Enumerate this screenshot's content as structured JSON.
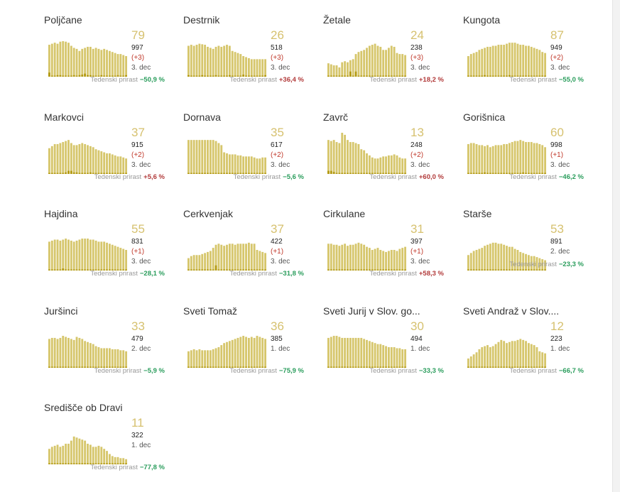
{
  "colors": {
    "bar": "#d6c66c",
    "bar_new": "#b39a12",
    "active": "#d6c16f",
    "growth_up": "#b23b3b",
    "growth_down": "#2a9d5c"
  },
  "growth_label": "Tedenski prirast",
  "chart_data": [
    {
      "type": "bar",
      "title": "Poljčane",
      "active": "79",
      "total": "997",
      "delta": "(+3)",
      "date": "3. dec",
      "growth": "−50,9 %",
      "dir": "down",
      "values": [
        62,
        64,
        66,
        64,
        68,
        69,
        68,
        66,
        60,
        56,
        54,
        50,
        54,
        56,
        58,
        58,
        54,
        56,
        54,
        52,
        54,
        52,
        50,
        48,
        46,
        44,
        44,
        42,
        40
      ],
      "new": [
        8,
        2,
        2,
        3,
        3,
        2,
        2,
        2,
        2,
        3,
        2,
        3,
        4,
        6,
        3,
        3,
        2,
        2,
        2,
        3,
        2,
        2,
        2,
        2,
        2,
        3,
        2,
        2,
        3
      ]
    },
    {
      "type": "bar",
      "title": "Destrnik",
      "active": "26",
      "total": "518",
      "delta": "(+3)",
      "date": "3. dec",
      "growth": "+36,4 %",
      "dir": "up",
      "values": [
        60,
        62,
        60,
        62,
        64,
        63,
        62,
        58,
        56,
        54,
        58,
        60,
        58,
        60,
        62,
        60,
        50,
        48,
        46,
        44,
        40,
        38,
        36,
        34,
        34,
        34,
        34,
        34,
        34
      ],
      "new": [
        3,
        2,
        2,
        2,
        2,
        3,
        2,
        2,
        2,
        2,
        3,
        2,
        2,
        2,
        2,
        3,
        2,
        2,
        2,
        2,
        4,
        2,
        2,
        2,
        2,
        2,
        2,
        2,
        3
      ]
    },
    {
      "type": "bar",
      "title": "Žetale",
      "active": "24",
      "total": "238",
      "delta": "(+3)",
      "date": "3. dec",
      "growth": "+18,2 %",
      "dir": "up",
      "values": [
        26,
        24,
        22,
        22,
        18,
        28,
        30,
        28,
        32,
        34,
        44,
        48,
        50,
        52,
        56,
        60,
        62,
        64,
        60,
        58,
        52,
        52,
        56,
        60,
        58,
        46,
        44,
        44,
        42
      ],
      "new": [
        2,
        2,
        2,
        2,
        2,
        2,
        2,
        2,
        10,
        2,
        10,
        2,
        2,
        2,
        2,
        2,
        2,
        2,
        2,
        2,
        2,
        2,
        2,
        2,
        2,
        2,
        2,
        2,
        2
      ]
    },
    {
      "type": "bar",
      "title": "Kungota",
      "active": "87",
      "total": "949",
      "delta": "(+2)",
      "date": "3. dec",
      "growth": "−55,0 %",
      "dir": "down",
      "values": [
        40,
        44,
        46,
        48,
        52,
        54,
        56,
        58,
        58,
        60,
        60,
        62,
        62,
        62,
        64,
        66,
        66,
        66,
        64,
        62,
        62,
        60,
        60,
        58,
        56,
        54,
        52,
        48,
        46
      ],
      "new": [
        2,
        2,
        2,
        2,
        2,
        2,
        3,
        2,
        2,
        2,
        2,
        2,
        2,
        2,
        2,
        3,
        2,
        2,
        2,
        2,
        2,
        2,
        2,
        2,
        2,
        2,
        2,
        2,
        2
      ]
    },
    {
      "type": "bar",
      "title": "Markovci",
      "active": "37",
      "total": "915",
      "delta": "(+2)",
      "date": "3. dec",
      "growth": "+5,6 %",
      "dir": "up",
      "values": [
        50,
        54,
        58,
        58,
        60,
        62,
        64,
        66,
        60,
        56,
        56,
        58,
        60,
        58,
        56,
        54,
        52,
        48,
        46,
        44,
        42,
        40,
        40,
        38,
        36,
        34,
        34,
        32,
        30
      ],
      "new": [
        2,
        2,
        2,
        2,
        2,
        2,
        3,
        6,
        6,
        3,
        3,
        2,
        2,
        2,
        2,
        3,
        2,
        2,
        2,
        2,
        2,
        2,
        2,
        2,
        2,
        2,
        2,
        2,
        2
      ]
    },
    {
      "type": "bar",
      "title": "Dornava",
      "active": "35",
      "total": "617",
      "delta": "(+2)",
      "date": "3. dec",
      "growth": "−5,6 %",
      "dir": "down",
      "values": [
        66,
        66,
        66,
        66,
        66,
        66,
        66,
        66,
        66,
        66,
        64,
        60,
        56,
        42,
        40,
        38,
        38,
        38,
        36,
        36,
        34,
        34,
        34,
        34,
        32,
        30,
        30,
        32,
        32
      ],
      "new": [
        2,
        2,
        2,
        2,
        2,
        2,
        2,
        2,
        2,
        2,
        2,
        2,
        2,
        2,
        2,
        2,
        2,
        2,
        2,
        2,
        2,
        2,
        2,
        2,
        2,
        2,
        2,
        2,
        2
      ]
    },
    {
      "type": "bar",
      "title": "Zavrč",
      "active": "13",
      "total": "248",
      "delta": "(+2)",
      "date": "3. dec",
      "growth": "+60,0 %",
      "dir": "up",
      "values": [
        66,
        64,
        66,
        62,
        60,
        80,
        76,
        66,
        62,
        62,
        60,
        58,
        48,
        46,
        40,
        36,
        32,
        30,
        30,
        32,
        34,
        34,
        36,
        36,
        38,
        36,
        32,
        30,
        30
      ],
      "new": [
        6,
        6,
        4,
        2,
        2,
        2,
        2,
        2,
        2,
        2,
        2,
        2,
        2,
        2,
        2,
        2,
        2,
        2,
        2,
        2,
        2,
        2,
        2,
        2,
        2,
        2,
        2,
        2,
        2
      ]
    },
    {
      "type": "bar",
      "title": "Gorišnica",
      "active": "60",
      "total": "998",
      "delta": "(+1)",
      "date": "3. dec",
      "growth": "−46,2 %",
      "dir": "down",
      "values": [
        58,
        60,
        60,
        58,
        56,
        56,
        54,
        56,
        52,
        54,
        56,
        56,
        56,
        58,
        58,
        60,
        62,
        64,
        64,
        66,
        64,
        62,
        62,
        62,
        60,
        60,
        58,
        56,
        52
      ],
      "new": [
        2,
        2,
        2,
        2,
        2,
        2,
        3,
        2,
        2,
        2,
        2,
        2,
        2,
        2,
        2,
        2,
        2,
        2,
        2,
        2,
        3,
        2,
        2,
        2,
        2,
        2,
        2,
        2,
        2
      ]
    },
    {
      "type": "bar",
      "title": "Hajdina",
      "active": "55",
      "total": "831",
      "delta": "(+1)",
      "date": "3. dec",
      "growth": "−28,1 %",
      "dir": "down",
      "values": [
        56,
        58,
        60,
        60,
        58,
        60,
        62,
        60,
        58,
        56,
        58,
        60,
        62,
        62,
        62,
        60,
        60,
        58,
        56,
        56,
        56,
        54,
        52,
        50,
        48,
        46,
        44,
        42,
        40
      ],
      "new": [
        2,
        2,
        2,
        2,
        2,
        4,
        2,
        2,
        2,
        2,
        2,
        2,
        2,
        2,
        2,
        2,
        2,
        2,
        2,
        2,
        2,
        2,
        2,
        2,
        2,
        2,
        2,
        2,
        2
      ]
    },
    {
      "type": "bar",
      "title": "Cerkvenjak",
      "active": "37",
      "total": "422",
      "delta": "(+1)",
      "date": "3. dec",
      "growth": "−31,8 %",
      "dir": "down",
      "values": [
        24,
        28,
        30,
        30,
        30,
        32,
        34,
        36,
        38,
        44,
        50,
        52,
        50,
        48,
        50,
        52,
        52,
        50,
        52,
        52,
        52,
        52,
        54,
        52,
        52,
        40,
        38,
        36,
        34
      ],
      "new": [
        2,
        2,
        2,
        2,
        2,
        2,
        2,
        2,
        2,
        2,
        10,
        2,
        2,
        2,
        2,
        2,
        2,
        2,
        2,
        2,
        2,
        2,
        2,
        2,
        2,
        2,
        2,
        2,
        2
      ]
    },
    {
      "type": "bar",
      "title": "Cirkulane",
      "active": "31",
      "total": "397",
      "delta": "(+1)",
      "date": "3. dec",
      "growth": "+58,3 %",
      "dir": "up",
      "values": [
        52,
        52,
        50,
        50,
        48,
        50,
        52,
        48,
        50,
        50,
        52,
        54,
        52,
        50,
        46,
        44,
        40,
        42,
        44,
        40,
        38,
        36,
        38,
        40,
        40,
        38,
        42,
        44,
        46
      ],
      "new": [
        2,
        2,
        2,
        2,
        2,
        2,
        2,
        2,
        2,
        2,
        2,
        2,
        2,
        2,
        2,
        2,
        2,
        2,
        2,
        2,
        2,
        2,
        2,
        2,
        2,
        2,
        2,
        2,
        2
      ]
    },
    {
      "type": "bar",
      "title": "Starše",
      "active": "53",
      "total": "891",
      "delta": "",
      "date": "2. dec",
      "growth": "−23,3 %",
      "dir": "down",
      "values": [
        30,
        34,
        38,
        40,
        42,
        44,
        48,
        50,
        52,
        54,
        54,
        52,
        52,
        50,
        48,
        46,
        46,
        42,
        40,
        36,
        34,
        32,
        30,
        28,
        28,
        26,
        24,
        22,
        20
      ],
      "new": [
        2,
        2,
        2,
        2,
        2,
        2,
        2,
        2,
        2,
        2,
        2,
        2,
        2,
        2,
        2,
        2,
        2,
        2,
        2,
        2,
        2,
        2,
        2,
        2,
        2,
        2,
        2,
        2,
        2
      ]
    },
    {
      "type": "bar",
      "title": "Juršinci",
      "active": "33",
      "total": "479",
      "delta": "",
      "date": "2. dec",
      "growth": "−5,9 %",
      "dir": "down",
      "values": [
        56,
        58,
        58,
        56,
        58,
        62,
        60,
        58,
        56,
        54,
        60,
        58,
        56,
        52,
        50,
        48,
        46,
        42,
        40,
        38,
        38,
        38,
        38,
        36,
        36,
        36,
        34,
        34,
        32
      ],
      "new": [
        2,
        2,
        2,
        2,
        2,
        2,
        2,
        2,
        2,
        2,
        2,
        2,
        2,
        2,
        2,
        2,
        2,
        2,
        2,
        2,
        2,
        2,
        2,
        2,
        2,
        2,
        2,
        2,
        2
      ]
    },
    {
      "type": "bar",
      "title": "Sveti Tomaž",
      "active": "36",
      "total": "385",
      "delta": "",
      "date": "1. dec",
      "growth": "−75,9 %",
      "dir": "down",
      "values": [
        32,
        34,
        36,
        34,
        36,
        34,
        34,
        34,
        34,
        36,
        38,
        40,
        44,
        48,
        50,
        52,
        54,
        56,
        58,
        60,
        62,
        60,
        58,
        60,
        58,
        62,
        60,
        58,
        56
      ],
      "new": [
        2,
        2,
        2,
        2,
        2,
        2,
        2,
        2,
        2,
        2,
        2,
        2,
        2,
        2,
        2,
        2,
        2,
        2,
        2,
        2,
        2,
        2,
        2,
        2,
        2,
        2,
        2,
        2,
        2
      ]
    },
    {
      "type": "bar",
      "title": "Sveti Jurij v Slov. go...",
      "active": "30",
      "total": "494",
      "delta": "",
      "date": "1. dec",
      "growth": "−33,3 %",
      "dir": "down",
      "values": [
        58,
        60,
        62,
        62,
        60,
        58,
        58,
        58,
        58,
        58,
        58,
        58,
        58,
        56,
        54,
        52,
        50,
        48,
        46,
        46,
        44,
        42,
        40,
        40,
        40,
        38,
        38,
        36,
        36
      ],
      "new": [
        2,
        2,
        2,
        2,
        2,
        2,
        2,
        2,
        2,
        2,
        2,
        2,
        2,
        2,
        2,
        2,
        2,
        2,
        2,
        2,
        2,
        2,
        2,
        2,
        2,
        2,
        2,
        2,
        2
      ]
    },
    {
      "type": "bar",
      "title": "Sveti Andraž v Slov....",
      "active": "12",
      "total": "223",
      "delta": "",
      "date": "1. dec",
      "growth": "−66,7 %",
      "dir": "down",
      "values": [
        18,
        22,
        26,
        30,
        36,
        40,
        42,
        44,
        40,
        42,
        46,
        50,
        54,
        52,
        48,
        50,
        52,
        52,
        54,
        56,
        54,
        52,
        48,
        46,
        44,
        40,
        32,
        30,
        28
      ],
      "new": [
        2,
        2,
        2,
        2,
        2,
        2,
        2,
        2,
        2,
        2,
        2,
        2,
        2,
        2,
        2,
        2,
        2,
        2,
        2,
        2,
        2,
        2,
        2,
        2,
        2,
        2,
        2,
        2,
        2
      ]
    },
    {
      "type": "bar",
      "title": "Središče ob Dravi",
      "active": "11",
      "total": "322",
      "delta": "",
      "date": "1. dec",
      "growth": "−77,8 %",
      "dir": "down",
      "values": [
        30,
        34,
        36,
        38,
        34,
        36,
        40,
        40,
        46,
        54,
        52,
        50,
        48,
        46,
        40,
        38,
        34,
        34,
        36,
        34,
        30,
        26,
        20,
        16,
        14,
        14,
        12,
        12,
        10
      ],
      "new": [
        2,
        2,
        2,
        2,
        2,
        2,
        2,
        2,
        2,
        2,
        2,
        2,
        2,
        2,
        2,
        2,
        2,
        2,
        2,
        2,
        2,
        2,
        2,
        2,
        2,
        2,
        2,
        2,
        2
      ]
    }
  ]
}
